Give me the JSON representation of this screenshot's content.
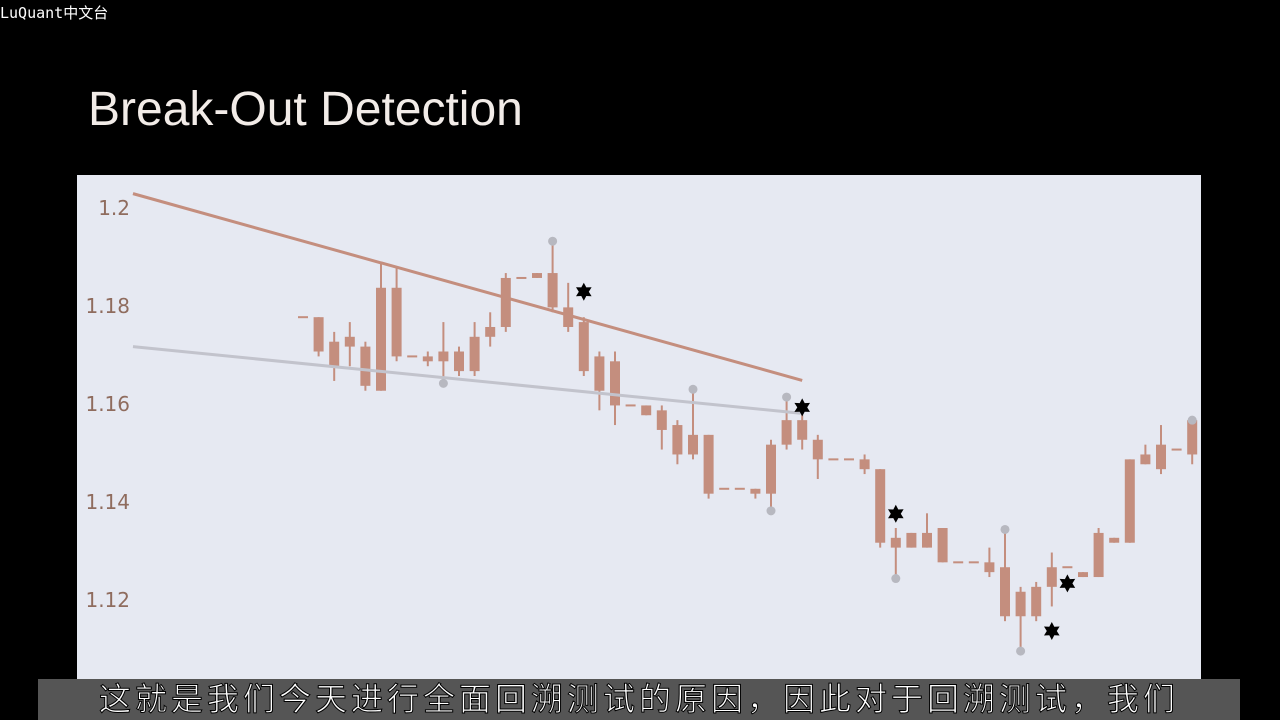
{
  "watermark": "LuQuant中文台",
  "caption": "这就是我们今天进行全面回溯测试的原因，因此对于回溯测试，我们",
  "chart_data": {
    "type": "candlestick",
    "title": "Break-Out Detection",
    "categories": [
      null,
      null,
      null,
      null,
      null,
      null,
      null,
      null,
      null,
      null,
      null,
      null,
      null,
      null,
      null,
      null,
      null,
      null,
      null,
      null,
      null,
      null,
      null,
      null,
      null,
      null,
      null,
      null,
      null,
      null,
      null,
      null,
      null,
      null,
      null,
      null,
      null,
      null,
      null,
      null,
      null,
      null,
      null,
      null,
      null,
      null,
      null,
      null,
      null,
      null,
      null,
      null,
      null,
      null,
      null,
      null,
      null,
      null
    ],
    "open": [
      1.178,
      1.178,
      1.173,
      1.174,
      1.172,
      1.163,
      1.184,
      1.17,
      1.17,
      1.169,
      1.171,
      1.167,
      1.174,
      1.176,
      1.186,
      1.186,
      1.187,
      1.18,
      1.177,
      1.17,
      1.169,
      1.16,
      1.16,
      1.159,
      1.156,
      1.15,
      1.154,
      1.143,
      1.143,
      1.143,
      1.142,
      1.152,
      1.157,
      1.153,
      1.149,
      1.149,
      1.149,
      1.147,
      1.131,
      1.131,
      1.134,
      1.135,
      1.128,
      1.128,
      1.128,
      1.127,
      1.122,
      1.117,
      1.123,
      1.127,
      1.126,
      1.125,
      1.132,
      1.132,
      1.148,
      1.147,
      1.151,
      1.15
    ],
    "high": [
      1.178,
      1.178,
      1.175,
      1.177,
      1.173,
      1.189,
      1.188,
      1.17,
      1.171,
      1.177,
      1.172,
      1.177,
      1.179,
      1.187,
      1.186,
      1.187,
      1.1935,
      1.185,
      1.178,
      1.171,
      1.171,
      1.16,
      1.16,
      1.16,
      1.157,
      1.163,
      1.154,
      1.143,
      1.143,
      1.143,
      1.153,
      1.1617,
      1.158,
      1.154,
      1.149,
      1.149,
      1.15,
      1.147,
      1.135,
      1.134,
      1.138,
      1.135,
      1.128,
      1.128,
      1.131,
      1.1347,
      1.123,
      1.124,
      1.13,
      1.127,
      1.126,
      1.135,
      1.133,
      1.149,
      1.152,
      1.156,
      1.151,
      1.157
    ],
    "low": [
      1.178,
      1.17,
      1.165,
      1.168,
      1.163,
      1.163,
      1.169,
      1.17,
      1.168,
      1.165,
      1.166,
      1.166,
      1.172,
      1.175,
      1.186,
      1.186,
      1.179,
      1.175,
      1.166,
      1.159,
      1.156,
      1.16,
      1.158,
      1.151,
      1.148,
      1.149,
      1.141,
      1.143,
      1.143,
      1.141,
      1.1385,
      1.151,
      1.151,
      1.145,
      1.149,
      1.149,
      1.146,
      1.131,
      1.1247,
      1.131,
      1.131,
      1.128,
      1.128,
      1.128,
      1.125,
      1.116,
      1.1099,
      1.116,
      1.119,
      1.127,
      1.125,
      1.125,
      1.132,
      1.132,
      1.148,
      1.146,
      1.151,
      1.148
    ],
    "close": [
      1.178,
      1.171,
      1.168,
      1.172,
      1.164,
      1.184,
      1.17,
      1.17,
      1.169,
      1.171,
      1.167,
      1.174,
      1.176,
      1.186,
      1.186,
      1.187,
      1.18,
      1.176,
      1.167,
      1.163,
      1.16,
      1.16,
      1.158,
      1.155,
      1.15,
      1.154,
      1.142,
      1.143,
      1.143,
      1.142,
      1.152,
      1.157,
      1.153,
      1.149,
      1.149,
      1.149,
      1.147,
      1.132,
      1.133,
      1.134,
      1.131,
      1.128,
      1.128,
      1.128,
      1.126,
      1.117,
      1.117,
      1.123,
      1.127,
      1.127,
      1.125,
      1.134,
      1.133,
      1.149,
      1.15,
      1.152,
      1.151,
      1.157
    ],
    "color": "#c48e7e",
    "ylim": [
      1.104,
      1.207
    ],
    "yticks": [
      1.12,
      1.14,
      1.16,
      1.18,
      1.2
    ],
    "lines": [
      {
        "x": [
          -10.9,
          32.0
        ],
        "values": [
          1.2032,
          1.1651
        ],
        "color": "#c48e7e"
      },
      {
        "x": [
          -10.9,
          31.9
        ],
        "values": [
          1.172,
          1.1584
        ],
        "color": "#c2c3cc"
      }
    ],
    "dots": {
      "x": [
        16,
        9,
        25,
        30,
        31,
        38,
        45,
        46,
        57
      ],
      "values": [
        1.1935,
        1.1645,
        1.1633,
        1.1385,
        1.1617,
        1.1247,
        1.1347,
        1.1099,
        1.157
      ],
      "color": "#b7b8c0"
    },
    "stars": {
      "x": [
        18,
        32,
        38,
        48,
        49
      ],
      "values": [
        1.1832,
        1.1596,
        1.1379,
        1.114,
        1.1237
      ],
      "color": "#000000"
    }
  }
}
